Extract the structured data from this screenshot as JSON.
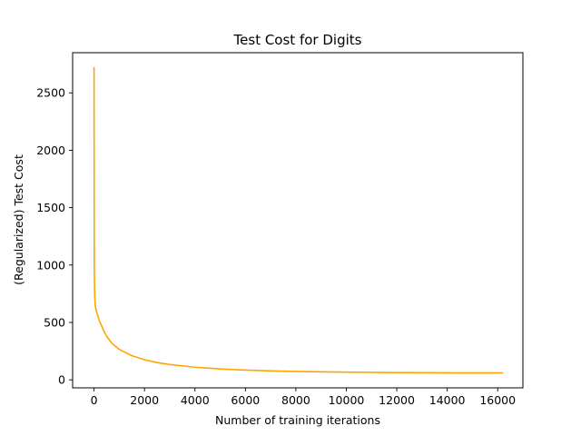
{
  "chart_data": {
    "type": "line",
    "title": "Test Cost for Digits",
    "xlabel": "Number of training iterations",
    "ylabel": "(Regularized) Test Cost",
    "xlim": [
      -850,
      17000
    ],
    "ylim": [
      -70,
      2850
    ],
    "xticks": [
      0,
      2000,
      4000,
      6000,
      8000,
      10000,
      12000,
      14000,
      16000
    ],
    "yticks": [
      0,
      500,
      1000,
      1500,
      2000,
      2500
    ],
    "xtick_labels": [
      "0",
      "2000",
      "4000",
      "6000",
      "8000",
      "10000",
      "12000",
      "14000",
      "16000"
    ],
    "ytick_labels": [
      "0",
      "500",
      "1000",
      "1500",
      "2000",
      "2500"
    ],
    "grid": false,
    "legend": null,
    "series": [
      {
        "color": "#ffa500",
        "x": [
          0,
          5,
          10,
          20,
          30,
          50,
          80,
          100,
          150,
          200,
          300,
          400,
          500,
          700,
          1000,
          1500,
          2000,
          2500,
          3000,
          4000,
          5000,
          6000,
          7000,
          8000,
          9000,
          10000,
          11000,
          12000,
          13000,
          14000,
          15000,
          16000,
          16200
        ],
        "y": [
          2720,
          1500,
          1000,
          800,
          700,
          640,
          610,
          590,
          555,
          520,
          470,
          420,
          380,
          320,
          265,
          210,
          175,
          150,
          133,
          110,
          95,
          85,
          78,
          73,
          70,
          67,
          65,
          63,
          62,
          61,
          60,
          60,
          60
        ]
      }
    ]
  }
}
